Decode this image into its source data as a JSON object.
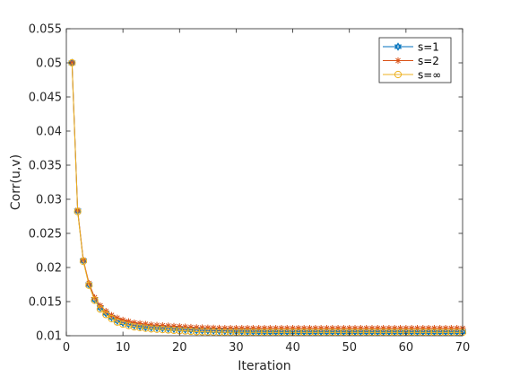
{
  "chart_data": {
    "type": "line",
    "title": "",
    "xlabel": "Iteration",
    "ylabel": "Corr(u,v)",
    "xlim": [
      0,
      70
    ],
    "ylim": [
      0.01,
      0.055
    ],
    "xticks": [
      0,
      10,
      20,
      30,
      40,
      50,
      60,
      70
    ],
    "xtick_labels": [
      "0",
      "10",
      "20",
      "30",
      "40",
      "50",
      "60",
      "70"
    ],
    "yticks": [
      0.01,
      0.015,
      0.02,
      0.025,
      0.03,
      0.035,
      0.04,
      0.045,
      0.05,
      0.055
    ],
    "ytick_labels": [
      "0.01",
      "0.015",
      "0.02",
      "0.025",
      "0.03",
      "0.035",
      "0.04",
      "0.045",
      "0.05",
      "0.055"
    ],
    "grid": false,
    "legend_position": "top-right",
    "x": [
      1,
      2,
      3,
      4,
      5,
      6,
      7,
      8,
      9,
      10,
      11,
      12,
      13,
      14,
      15,
      16,
      17,
      18,
      19,
      20,
      21,
      22,
      23,
      24,
      25,
      26,
      27,
      28,
      29,
      30,
      31,
      32,
      33,
      34,
      35,
      36,
      37,
      38,
      39,
      40,
      41,
      42,
      43,
      44,
      45,
      46,
      47,
      48,
      49,
      50,
      51,
      52,
      53,
      54,
      55,
      56,
      57,
      58,
      59,
      60,
      61,
      62,
      63,
      64,
      65,
      66,
      67,
      68,
      69,
      70
    ],
    "series": [
      {
        "name": "s=1",
        "color": "#0072BD",
        "marker": "hexagram",
        "values": [
          0.05,
          0.0283,
          0.021,
          0.0175,
          0.0153,
          0.0141,
          0.0133,
          0.0127,
          0.0122,
          0.0119,
          0.0117,
          0.0115,
          0.01135,
          0.01125,
          0.0112,
          0.01115,
          0.0111,
          0.01105,
          0.011,
          0.01095,
          0.0109,
          0.01085,
          0.0108,
          0.01078,
          0.01076,
          0.01074,
          0.01072,
          0.0107,
          0.01068,
          0.01066,
          0.01065,
          0.01064,
          0.01063,
          0.01062,
          0.01061,
          0.0106,
          0.0106,
          0.0106,
          0.0106,
          0.0106,
          0.0106,
          0.0106,
          0.0106,
          0.0106,
          0.0106,
          0.0106,
          0.0106,
          0.0106,
          0.0106,
          0.0106,
          0.0106,
          0.0106,
          0.0106,
          0.0106,
          0.0106,
          0.0106,
          0.0106,
          0.0106,
          0.0106,
          0.0106,
          0.0106,
          0.0106,
          0.0106,
          0.0106,
          0.0106,
          0.0106,
          0.0106,
          0.0106,
          0.0106,
          0.0106
        ]
      },
      {
        "name": "s=2",
        "color": "#D95319",
        "marker": "asterisk",
        "values": [
          0.05,
          0.0284,
          0.0211,
          0.0177,
          0.0156,
          0.0144,
          0.0136,
          0.013,
          0.0126,
          0.0123,
          0.0121,
          0.0119,
          0.0118,
          0.0117,
          0.0116,
          0.01155,
          0.0115,
          0.01145,
          0.0114,
          0.01135,
          0.0113,
          0.01125,
          0.0112,
          0.01118,
          0.01116,
          0.01114,
          0.01112,
          0.0111,
          0.0111,
          0.0111,
          0.0111,
          0.0111,
          0.0111,
          0.0111,
          0.0111,
          0.0111,
          0.0111,
          0.0111,
          0.0111,
          0.0111,
          0.0111,
          0.0111,
          0.0111,
          0.0111,
          0.0111,
          0.0111,
          0.0111,
          0.0111,
          0.0111,
          0.0111,
          0.0111,
          0.0111,
          0.0111,
          0.0111,
          0.0111,
          0.0111,
          0.0111,
          0.0111,
          0.0111,
          0.0111,
          0.0111,
          0.0111,
          0.0111,
          0.0111,
          0.0111,
          0.0111,
          0.0111,
          0.0111,
          0.0111,
          0.0111
        ]
      },
      {
        "name": "s=∞",
        "color": "#EDB120",
        "marker": "circle",
        "values": [
          0.05,
          0.0282,
          0.0209,
          0.0174,
          0.0152,
          0.0139,
          0.0131,
          0.0125,
          0.012,
          0.0117,
          0.0115,
          0.0113,
          0.0112,
          0.0111,
          0.011,
          0.01095,
          0.0109,
          0.01085,
          0.0108,
          0.01075,
          0.0107,
          0.01065,
          0.0106,
          0.01058,
          0.01056,
          0.01054,
          0.01052,
          0.0105,
          0.0105,
          0.0105,
          0.0105,
          0.0105,
          0.0105,
          0.0105,
          0.0105,
          0.0105,
          0.0105,
          0.0105,
          0.0105,
          0.0105,
          0.0105,
          0.0105,
          0.0105,
          0.0105,
          0.0105,
          0.0105,
          0.0105,
          0.0105,
          0.0105,
          0.0105,
          0.0105,
          0.0105,
          0.0105,
          0.0105,
          0.0105,
          0.0105,
          0.0105,
          0.0105,
          0.0105,
          0.0105,
          0.0105,
          0.0105,
          0.0105,
          0.0105,
          0.0105,
          0.0105,
          0.0105,
          0.0105,
          0.0105,
          0.0105
        ]
      }
    ]
  }
}
